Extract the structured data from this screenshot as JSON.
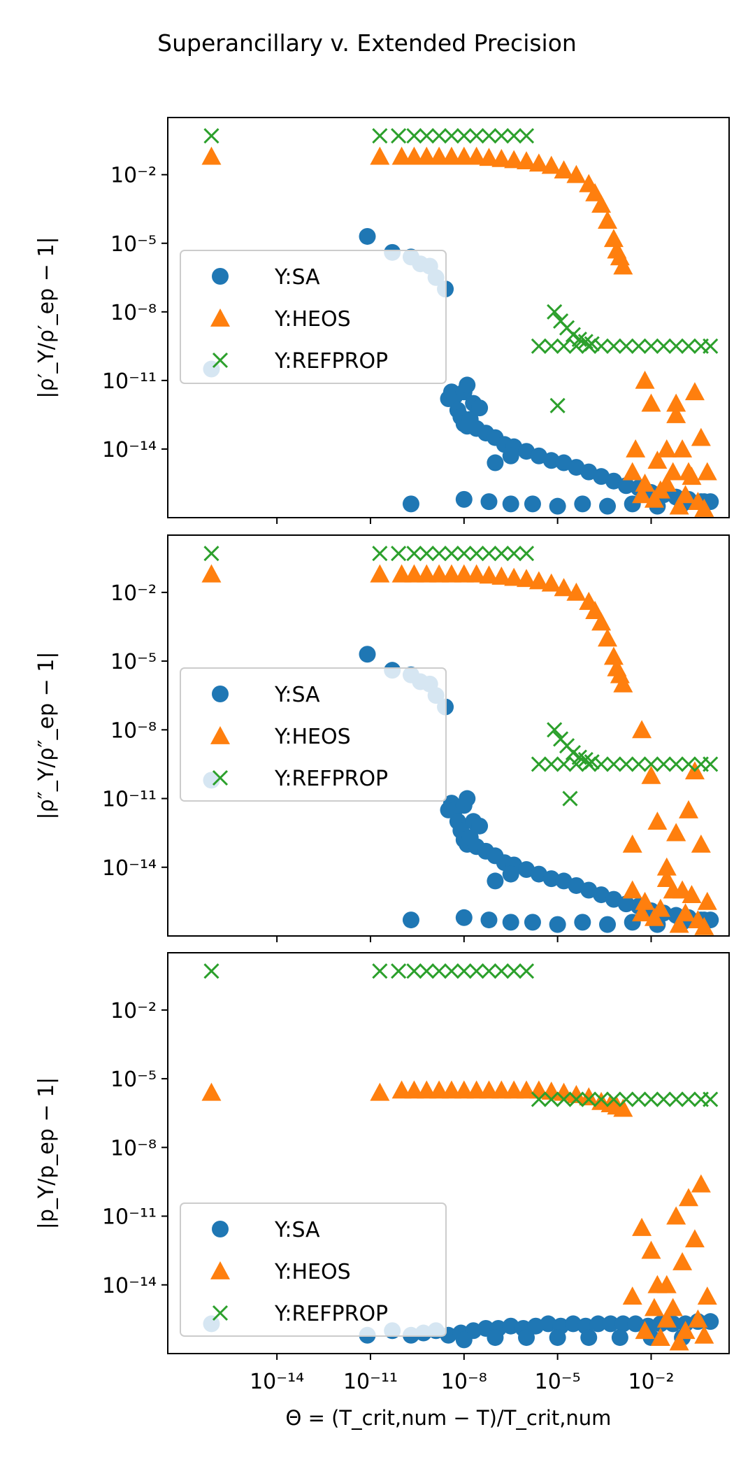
{
  "figure_title": "Superancillary v. Extended Precision",
  "colors": {
    "SA": "#1f77b4",
    "HEOS": "#ff7f0e",
    "REFPROP": "#2ca02c"
  },
  "chart_data": [
    {
      "type": "scatter",
      "title": "",
      "xscale": "log",
      "yscale": "log",
      "xlim_log10": [
        -17.5,
        0.5
      ],
      "ylim_log10": [
        -17,
        0.5
      ],
      "xticks_log10": [
        -14,
        -11,
        -8,
        -5,
        -2
      ],
      "yticks_log10": [
        -2,
        -5,
        -8,
        -11,
        -14
      ],
      "xlabel": "",
      "ylabel": "|ρ′_Y/ρ′_ep − 1|",
      "legend": {
        "placement": "center-left",
        "entries": [
          "Y:SA",
          "Y:HEOS",
          "Y:REFPROP"
        ]
      },
      "series": [
        {
          "name": "Y:SA",
          "marker": "circle",
          "x_log10": [
            -16.1,
            -11.1,
            -10.3,
            -9.7,
            -9.4,
            -9.1,
            -8.9,
            -8.6,
            -8.5,
            -8.4,
            -8.3,
            -8.2,
            -8.1,
            -8.0,
            -7.9,
            -7.8,
            -7.6,
            -7.3,
            -7.0,
            -6.7,
            -6.4,
            -6.0,
            -5.6,
            -5.2,
            -4.8,
            -4.4,
            -4.0,
            -3.6,
            -3.2,
            -2.8,
            -2.4,
            -2.0,
            -1.6,
            -1.2,
            -0.8,
            -0.4,
            -0.1,
            -9.7,
            -8.0,
            -7.2,
            -6.5,
            -5.8,
            -5.0,
            -4.2,
            -3.4,
            -2.6,
            -1.8,
            -1.0,
            -0.3,
            -8.0,
            -7.9,
            -7.7,
            -7.5,
            -7.0,
            -6.5
          ],
          "y_log10": [
            -10.5,
            -4.7,
            -5.4,
            -5.6,
            -5.9,
            -6.0,
            -6.5,
            -7.0,
            -11.8,
            -11.5,
            -11.7,
            -12.3,
            -12.6,
            -12.9,
            -13.0,
            -12.7,
            -13.1,
            -13.3,
            -13.5,
            -13.8,
            -13.9,
            -14.1,
            -14.3,
            -14.5,
            -14.6,
            -14.8,
            -15.0,
            -15.2,
            -15.4,
            -15.6,
            -15.7,
            -15.9,
            -16.0,
            -16.1,
            -16.2,
            -16.3,
            -16.3,
            -16.4,
            -16.2,
            -16.3,
            -16.4,
            -16.4,
            -16.5,
            -16.4,
            -16.5,
            -16.4,
            -16.5,
            -16.4,
            -16.3,
            -11.5,
            -11.2,
            -12.0,
            -12.2,
            -14.6,
            -14.3
          ]
        },
        {
          "name": "Y:HEOS",
          "marker": "triangle",
          "x_log10": [
            -16.1,
            -10.7,
            -10.0,
            -9.6,
            -9.2,
            -8.8,
            -8.4,
            -8.0,
            -7.6,
            -7.2,
            -6.8,
            -6.4,
            -6.0,
            -5.6,
            -5.2,
            -4.8,
            -4.4,
            -4.0,
            -3.8,
            -3.6,
            -3.4,
            -3.2,
            -3.1,
            -3.0,
            -2.9,
            -2.5,
            -2.2,
            -2.0,
            -1.8,
            -1.5,
            -1.2,
            -1.0,
            -0.8,
            -0.6,
            -0.4,
            -0.2,
            -2.2,
            -1.9,
            -1.7,
            -1.3,
            -1.1,
            -0.9,
            -0.7,
            -0.5,
            -0.3,
            -1.5,
            -1.2,
            -2.6,
            -2.3
          ],
          "y_log10": [
            -1.2,
            -1.2,
            -1.2,
            -1.2,
            -1.2,
            -1.2,
            -1.2,
            -1.2,
            -1.2,
            -1.25,
            -1.3,
            -1.35,
            -1.4,
            -1.5,
            -1.6,
            -1.8,
            -2.0,
            -2.4,
            -2.8,
            -3.3,
            -4.0,
            -4.8,
            -5.3,
            -5.6,
            -6.0,
            -14.0,
            -11.0,
            -12.0,
            -14.5,
            -15.5,
            -12.0,
            -14.0,
            -15.0,
            -11.5,
            -13.5,
            -15.0,
            -15.5,
            -16.2,
            -15.8,
            -15.0,
            -16.5,
            -16.0,
            -15.2,
            -16.3,
            -16.6,
            -14.0,
            -12.5,
            -15.0,
            -16.0
          ]
        },
        {
          "name": "Y:REFPROP",
          "marker": "x",
          "x_log10": [
            -16.1,
            -10.7,
            -10.1,
            -9.6,
            -9.2,
            -8.8,
            -8.4,
            -8.0,
            -7.6,
            -7.2,
            -6.8,
            -6.4,
            -6.0,
            -5.6,
            -5.2,
            -4.8,
            -4.4,
            -4.0,
            -3.6,
            -3.2,
            -2.8,
            -2.4,
            -2.0,
            -1.6,
            -1.2,
            -0.8,
            -0.4,
            -0.1,
            -5.1,
            -4.9,
            -4.7,
            -4.5,
            -4.3,
            -4.1,
            -3.9,
            -5.0
          ],
          "y_log10": [
            -0.3,
            -0.3,
            -0.3,
            -0.3,
            -0.3,
            -0.3,
            -0.3,
            -0.3,
            -0.3,
            -0.3,
            -0.3,
            -0.3,
            -0.3,
            -9.5,
            -9.5,
            -9.5,
            -9.5,
            -9.5,
            -9.5,
            -9.5,
            -9.5,
            -9.5,
            -9.5,
            -9.5,
            -9.5,
            -9.5,
            -9.5,
            -9.5,
            -8.0,
            -8.4,
            -8.7,
            -9.0,
            -9.2,
            -9.3,
            -9.4,
            -12.1
          ]
        }
      ]
    },
    {
      "type": "scatter",
      "title": "",
      "xscale": "log",
      "yscale": "log",
      "xlim_log10": [
        -17.5,
        0.5
      ],
      "ylim_log10": [
        -17,
        0.5
      ],
      "xticks_log10": [
        -14,
        -11,
        -8,
        -5,
        -2
      ],
      "yticks_log10": [
        -2,
        -5,
        -8,
        -11,
        -14
      ],
      "xlabel": "",
      "ylabel": "|ρ″_Y/ρ″_ep − 1|",
      "legend": {
        "placement": "center-left",
        "entries": [
          "Y:SA",
          "Y:HEOS",
          "Y:REFPROP"
        ]
      },
      "series": [
        {
          "name": "Y:SA",
          "marker": "circle",
          "x_log10": [
            -16.1,
            -11.1,
            -10.3,
            -9.7,
            -9.4,
            -9.1,
            -8.9,
            -8.6,
            -8.5,
            -8.4,
            -8.3,
            -8.2,
            -8.1,
            -8.0,
            -7.9,
            -7.8,
            -7.6,
            -7.3,
            -7.0,
            -6.7,
            -6.4,
            -6.0,
            -5.6,
            -5.2,
            -4.8,
            -4.4,
            -4.0,
            -3.6,
            -3.2,
            -2.8,
            -2.4,
            -2.0,
            -1.6,
            -1.2,
            -0.8,
            -0.4,
            -0.1,
            -9.7,
            -8.0,
            -7.2,
            -6.5,
            -5.8,
            -5.0,
            -4.2,
            -3.4,
            -2.6,
            -1.8,
            -1.0,
            -0.3,
            -8.0,
            -7.9,
            -7.7,
            -7.5,
            -7.0,
            -6.5
          ],
          "y_log10": [
            -10.2,
            -4.7,
            -5.4,
            -5.6,
            -5.9,
            -6.0,
            -6.5,
            -7.0,
            -11.5,
            -11.2,
            -11.5,
            -12.0,
            -12.4,
            -12.8,
            -13.0,
            -12.7,
            -13.1,
            -13.3,
            -13.5,
            -13.8,
            -13.9,
            -14.1,
            -14.3,
            -14.5,
            -14.6,
            -14.8,
            -15.0,
            -15.2,
            -15.4,
            -15.6,
            -15.7,
            -15.9,
            -16.0,
            -16.1,
            -16.2,
            -16.3,
            -16.3,
            -16.3,
            -16.2,
            -16.3,
            -16.4,
            -16.4,
            -16.5,
            -16.4,
            -16.5,
            -16.4,
            -16.5,
            -16.4,
            -16.3,
            -11.3,
            -11.0,
            -12.0,
            -12.2,
            -14.6,
            -14.3
          ]
        },
        {
          "name": "Y:HEOS",
          "marker": "triangle",
          "x_log10": [
            -16.1,
            -10.7,
            -10.0,
            -9.6,
            -9.2,
            -8.8,
            -8.4,
            -8.0,
            -7.6,
            -7.2,
            -6.8,
            -6.4,
            -6.0,
            -5.6,
            -5.2,
            -4.8,
            -4.4,
            -4.0,
            -3.8,
            -3.6,
            -3.4,
            -3.2,
            -3.1,
            -3.0,
            -2.9,
            -2.6,
            -2.3,
            -2.0,
            -1.8,
            -1.5,
            -1.2,
            -1.0,
            -0.8,
            -0.6,
            -0.4,
            -0.2,
            -2.2,
            -1.9,
            -1.7,
            -1.3,
            -1.1,
            -0.9,
            -0.7,
            -0.5,
            -0.3,
            -1.5,
            -1.2,
            -2.6,
            -2.3
          ],
          "y_log10": [
            -1.2,
            -1.2,
            -1.2,
            -1.2,
            -1.2,
            -1.2,
            -1.2,
            -1.2,
            -1.2,
            -1.25,
            -1.3,
            -1.35,
            -1.4,
            -1.5,
            -1.6,
            -1.8,
            -2.0,
            -2.4,
            -2.8,
            -3.3,
            -4.0,
            -4.8,
            -5.3,
            -5.6,
            -6.0,
            -13.0,
            -8.0,
            -10.0,
            -12.0,
            -14.5,
            -12.5,
            -15.0,
            -11.5,
            -9.8,
            -13.0,
            -15.5,
            -15.5,
            -16.2,
            -15.8,
            -15.0,
            -16.5,
            -16.0,
            -15.2,
            -16.3,
            -16.6,
            -14.0,
            -12.5,
            -15.0,
            -16.0
          ]
        },
        {
          "name": "Y:REFPROP",
          "marker": "x",
          "x_log10": [
            -16.1,
            -10.7,
            -10.1,
            -9.6,
            -9.2,
            -8.8,
            -8.4,
            -8.0,
            -7.6,
            -7.2,
            -6.8,
            -6.4,
            -6.0,
            -5.6,
            -5.2,
            -4.8,
            -4.4,
            -4.0,
            -3.6,
            -3.2,
            -2.8,
            -2.4,
            -2.0,
            -1.6,
            -1.2,
            -0.8,
            -0.4,
            -0.1,
            -5.1,
            -4.9,
            -4.7,
            -4.5,
            -4.3,
            -4.1,
            -3.9,
            -4.6
          ],
          "y_log10": [
            -0.3,
            -0.3,
            -0.3,
            -0.3,
            -0.3,
            -0.3,
            -0.3,
            -0.3,
            -0.3,
            -0.3,
            -0.3,
            -0.3,
            -0.3,
            -9.5,
            -9.5,
            -9.5,
            -9.5,
            -9.5,
            -9.5,
            -9.5,
            -9.5,
            -9.5,
            -9.5,
            -9.5,
            -9.5,
            -9.5,
            -9.5,
            -9.5,
            -8.0,
            -8.4,
            -8.7,
            -9.0,
            -9.2,
            -9.3,
            -9.4,
            -11.0
          ]
        }
      ]
    },
    {
      "type": "scatter",
      "title": "",
      "xscale": "log",
      "yscale": "log",
      "xlim_log10": [
        -17.5,
        0.5
      ],
      "ylim_log10": [
        -17,
        0.5
      ],
      "xticks_log10": [
        -14,
        -11,
        -8,
        -5,
        -2
      ],
      "yticks_log10": [
        -2,
        -5,
        -8,
        -11,
        -14
      ],
      "xlabel": "Θ = (T_crit,num − T)/T_crit,num",
      "ylabel": "|p_Y/p_ep − 1|",
      "legend": {
        "placement": "lower-left",
        "entries": [
          "Y:SA",
          "Y:HEOS",
          "Y:REFPROP"
        ]
      },
      "series": [
        {
          "name": "Y:SA",
          "marker": "circle",
          "x_log10": [
            -16.1,
            -11.1,
            -10.3,
            -9.7,
            -9.3,
            -8.9,
            -8.5,
            -8.1,
            -7.7,
            -7.3,
            -6.9,
            -6.5,
            -6.1,
            -5.7,
            -5.3,
            -4.9,
            -4.5,
            -4.1,
            -3.7,
            -3.3,
            -2.9,
            -2.5,
            -2.1,
            -1.7,
            -1.3,
            -0.9,
            -0.5,
            -0.1,
            -8.0,
            -7.0,
            -6.0,
            -5.0,
            -4.0,
            -3.0,
            -2.0,
            -1.0
          ],
          "y_log10": [
            -15.7,
            -16.2,
            -16.0,
            -16.2,
            -16.1,
            -16.0,
            -16.2,
            -16.1,
            -16.0,
            -15.9,
            -15.9,
            -15.8,
            -15.9,
            -15.8,
            -15.7,
            -15.8,
            -15.7,
            -15.8,
            -15.7,
            -15.7,
            -15.7,
            -15.7,
            -15.8,
            -15.7,
            -15.7,
            -15.7,
            -15.6,
            -15.6,
            -16.4,
            -16.3,
            -16.3,
            -16.3,
            -16.3,
            -16.3,
            -16.3,
            -16.3
          ]
        },
        {
          "name": "Y:HEOS",
          "marker": "triangle",
          "x_log10": [
            -16.1,
            -10.7,
            -10.0,
            -9.6,
            -9.2,
            -8.8,
            -8.4,
            -8.0,
            -7.6,
            -7.2,
            -6.8,
            -6.4,
            -6.0,
            -5.6,
            -5.2,
            -4.8,
            -4.4,
            -4.0,
            -3.6,
            -3.3,
            -3.1,
            -2.9,
            -2.6,
            -2.3,
            -2.0,
            -1.8,
            -1.5,
            -1.2,
            -1.0,
            -0.8,
            -0.6,
            -0.4,
            -0.2,
            -2.2,
            -1.9,
            -1.7,
            -1.3,
            -1.1,
            -0.9,
            -0.5,
            -0.3,
            -1.5
          ],
          "y_log10": [
            -5.6,
            -5.6,
            -5.5,
            -5.5,
            -5.5,
            -5.5,
            -5.5,
            -5.5,
            -5.5,
            -5.5,
            -5.5,
            -5.5,
            -5.5,
            -5.5,
            -5.55,
            -5.6,
            -5.7,
            -5.8,
            -6.0,
            -6.1,
            -6.2,
            -6.3,
            -14.5,
            -11.5,
            -12.5,
            -14.0,
            -15.5,
            -11.0,
            -13.0,
            -10.2,
            -12.0,
            -9.6,
            -14.5,
            -16.0,
            -15.0,
            -16.3,
            -15.0,
            -16.5,
            -16.0,
            -15.5,
            -16.2,
            -14.0
          ]
        },
        {
          "name": "Y:REFPROP",
          "marker": "x",
          "x_log10": [
            -16.1,
            -10.7,
            -10.1,
            -9.6,
            -9.2,
            -8.8,
            -8.4,
            -8.0,
            -7.6,
            -7.2,
            -6.8,
            -6.4,
            -6.0,
            -5.6,
            -5.2,
            -4.8,
            -4.4,
            -4.0,
            -3.6,
            -3.2,
            -2.8,
            -2.4,
            -2.0,
            -1.6,
            -1.2,
            -0.8,
            -0.4,
            -0.1
          ],
          "y_log10": [
            -0.3,
            -0.3,
            -0.3,
            -0.3,
            -0.3,
            -0.3,
            -0.3,
            -0.3,
            -0.3,
            -0.3,
            -0.3,
            -0.3,
            -0.3,
            -5.9,
            -5.9,
            -5.9,
            -5.9,
            -5.9,
            -5.9,
            -5.9,
            -5.9,
            -5.9,
            -5.9,
            -5.9,
            -5.9,
            -5.9,
            -5.9,
            -5.9
          ]
        }
      ]
    }
  ]
}
